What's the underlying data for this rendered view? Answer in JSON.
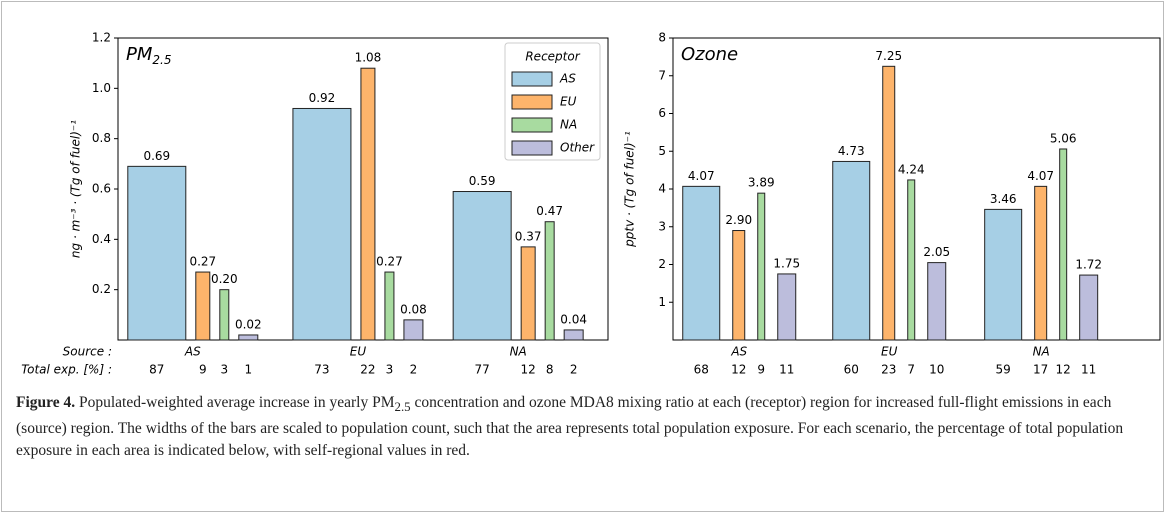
{
  "chart_data": [
    {
      "type": "bar",
      "title": "PM",
      "title_subscript": "2.5",
      "ylabel": "ng · m⁻³ · (Tg of fuel)⁻¹",
      "categories": [
        "AS",
        "EU",
        "NA"
      ],
      "category_label": "Source :",
      "exposure_label": "Total exp. [%] :",
      "series": [
        {
          "name": "AS",
          "color": "#a6cfe5",
          "values": [
            0.69,
            0.92,
            0.59
          ],
          "value_labels": [
            "0.69",
            "0.92",
            "0.59"
          ]
        },
        {
          "name": "EU",
          "color": "#fdb46b",
          "values": [
            0.27,
            1.08,
            0.37
          ],
          "value_labels": [
            "0.27",
            "1.08",
            "0.37"
          ]
        },
        {
          "name": "NA",
          "color": "#a8dba0",
          "values": [
            0.2,
            0.27,
            0.47
          ],
          "value_labels": [
            "0.20",
            "0.27",
            "0.47"
          ]
        },
        {
          "name": "Other",
          "color": "#bcbddc",
          "values": [
            0.02,
            0.08,
            0.04
          ],
          "value_labels": [
            "0.02",
            "0.08",
            "0.04"
          ]
        }
      ],
      "ylim": [
        0,
        1.2
      ],
      "yticks": [
        0.2,
        0.4,
        0.6,
        0.8,
        {
          "value": 1,
          "label": "1.0"
        },
        1.2
      ],
      "legend": "upper right",
      "legend_title": "Receptor",
      "total_exposure": [
        [
          87,
          9,
          3,
          1
        ],
        [
          73,
          22,
          3,
          2
        ],
        [
          77,
          12,
          8,
          2
        ]
      ],
      "highlight_color": "#a50f15"
    },
    {
      "type": "bar",
      "title": "Ozone",
      "ylabel": "pptv · (Tg of fuel)⁻¹",
      "categories": [
        "AS",
        "EU",
        "NA"
      ],
      "series": [
        {
          "name": "AS",
          "color": "#a6cfe5",
          "values": [
            4.07,
            4.73,
            3.46
          ],
          "value_labels": [
            "4.07",
            "4.73",
            "3.46"
          ]
        },
        {
          "name": "EU",
          "color": "#fdb46b",
          "values": [
            2.9,
            7.25,
            4.07
          ],
          "value_labels": [
            "2.90",
            "7.25",
            "4.07"
          ]
        },
        {
          "name": "NA",
          "color": "#a8dba0",
          "values": [
            3.89,
            4.24,
            5.06
          ],
          "value_labels": [
            "3.89",
            "4.24",
            "5.06"
          ]
        },
        {
          "name": "Other",
          "color": "#bcbddc",
          "values": [
            1.75,
            2.05,
            1.72
          ],
          "value_labels": [
            "1.75",
            "2.05",
            "1.72"
          ]
        }
      ],
      "ylim": [
        0,
        8
      ],
      "yticks": [
        1,
        2,
        3,
        4,
        5,
        6,
        7,
        8
      ],
      "total_exposure": [
        [
          68,
          12,
          9,
          11
        ],
        [
          60,
          23,
          7,
          10
        ],
        [
          59,
          17,
          12,
          11
        ]
      ],
      "highlight_color": "#a50f15"
    }
  ],
  "caption": {
    "label": "Figure 4.",
    "text_before": " Populated-weighted average increase in yearly PM",
    "subscript": "2.5",
    "text_after": " concentration and ozone MDA8 mixing ratio at each (receptor) region for increased full-flight emissions in each (source) region. The widths of the bars are scaled to population count, such that the area represents total population exposure. For each scenario, the percentage of total population exposure in each area is indicated below, with self-regional values in red."
  }
}
